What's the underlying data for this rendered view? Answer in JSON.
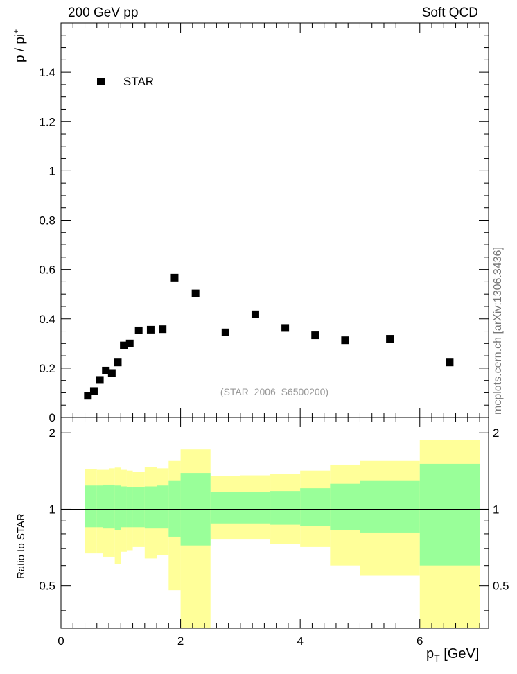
{
  "header": {
    "left": "200 GeV pp",
    "right": "Soft QCD"
  },
  "side_label": "mcplots.cern.ch [arXiv:1306.3436]",
  "analysis_id": "(STAR_2006_S6500200)",
  "chart_data": [
    {
      "type": "scatter",
      "title": "",
      "xlabel": "pT [GeV]",
      "ylabel": "p / pi+",
      "xlim": [
        0,
        7.15
      ],
      "ylim": [
        0,
        1.6
      ],
      "yticks": [
        0,
        0.2,
        0.4,
        0.6,
        0.8,
        1,
        1.2,
        1.4
      ],
      "ytick_labels": [
        "0",
        "0.2",
        "0.4",
        "0.6",
        "0.8",
        "1",
        "1.2",
        "1.4"
      ],
      "legend": [
        {
          "name": "STAR",
          "marker": "square"
        }
      ],
      "series": [
        {
          "name": "STAR",
          "x": [
            0.45,
            0.55,
            0.65,
            0.75,
            0.85,
            0.95,
            1.05,
            1.15,
            1.3,
            1.5,
            1.7,
            1.9,
            2.25,
            2.75,
            3.25,
            3.75,
            4.25,
            4.75,
            5.5,
            6.5
          ],
          "y": [
            0.088,
            0.107,
            0.152,
            0.19,
            0.18,
            0.223,
            0.292,
            0.3,
            0.353,
            0.356,
            0.358,
            0.567,
            0.503,
            0.345,
            0.418,
            0.363,
            0.333,
            0.313,
            0.319,
            0.223
          ]
        }
      ]
    },
    {
      "type": "area",
      "title": "",
      "xlabel": "pT [GeV]",
      "ylabel": "Ratio to STAR",
      "xlim": [
        0,
        7.15
      ],
      "ylim": [
        0.34,
        2.3
      ],
      "yticks": [
        0.5,
        1,
        2
      ],
      "ytick_labels": [
        "0.5",
        "1",
        "2"
      ],
      "xticks": [
        0,
        2,
        4,
        6
      ],
      "xtick_labels": [
        "0",
        "2",
        "4",
        "6"
      ],
      "reference_line": 1,
      "bins": [
        {
          "x0": 0.4,
          "x1": 0.5,
          "in_lo": 0.85,
          "in_hi": 1.24,
          "out_lo": 0.67,
          "out_hi": 1.44
        },
        {
          "x0": 0.5,
          "x1": 0.6,
          "in_lo": 0.85,
          "in_hi": 1.24,
          "out_lo": 0.67,
          "out_hi": 1.44
        },
        {
          "x0": 0.6,
          "x1": 0.7,
          "in_lo": 0.85,
          "in_hi": 1.24,
          "out_lo": 0.67,
          "out_hi": 1.43
        },
        {
          "x0": 0.7,
          "x1": 0.8,
          "in_lo": 0.84,
          "in_hi": 1.25,
          "out_lo": 0.65,
          "out_hi": 1.43
        },
        {
          "x0": 0.8,
          "x1": 0.9,
          "in_lo": 0.84,
          "in_hi": 1.25,
          "out_lo": 0.65,
          "out_hi": 1.45
        },
        {
          "x0": 0.9,
          "x1": 1.0,
          "in_lo": 0.83,
          "in_hi": 1.24,
          "out_lo": 0.61,
          "out_hi": 1.46
        },
        {
          "x0": 1.0,
          "x1": 1.1,
          "in_lo": 0.85,
          "in_hi": 1.23,
          "out_lo": 0.68,
          "out_hi": 1.43
        },
        {
          "x0": 1.1,
          "x1": 1.2,
          "in_lo": 0.85,
          "in_hi": 1.22,
          "out_lo": 0.69,
          "out_hi": 1.42
        },
        {
          "x0": 1.2,
          "x1": 1.4,
          "in_lo": 0.85,
          "in_hi": 1.22,
          "out_lo": 0.71,
          "out_hi": 1.4
        },
        {
          "x0": 1.4,
          "x1": 1.6,
          "in_lo": 0.84,
          "in_hi": 1.23,
          "out_lo": 0.64,
          "out_hi": 1.47
        },
        {
          "x0": 1.6,
          "x1": 1.8,
          "in_lo": 0.84,
          "in_hi": 1.24,
          "out_lo": 0.66,
          "out_hi": 1.45
        },
        {
          "x0": 1.8,
          "x1": 2.0,
          "in_lo": 0.78,
          "in_hi": 1.3,
          "out_lo": 0.48,
          "out_hi": 1.55
        },
        {
          "x0": 2.0,
          "x1": 2.5,
          "in_lo": 0.72,
          "in_hi": 1.39,
          "out_lo": 0.34,
          "out_hi": 1.72
        },
        {
          "x0": 2.5,
          "x1": 3.0,
          "in_lo": 0.88,
          "in_hi": 1.17,
          "out_lo": 0.76,
          "out_hi": 1.35
        },
        {
          "x0": 3.0,
          "x1": 3.5,
          "in_lo": 0.88,
          "in_hi": 1.17,
          "out_lo": 0.76,
          "out_hi": 1.36
        },
        {
          "x0": 3.5,
          "x1": 4.0,
          "in_lo": 0.87,
          "in_hi": 1.18,
          "out_lo": 0.73,
          "out_hi": 1.38
        },
        {
          "x0": 4.0,
          "x1": 4.5,
          "in_lo": 0.86,
          "in_hi": 1.21,
          "out_lo": 0.71,
          "out_hi": 1.42
        },
        {
          "x0": 4.5,
          "x1": 5.0,
          "in_lo": 0.83,
          "in_hi": 1.26,
          "out_lo": 0.6,
          "out_hi": 1.5
        },
        {
          "x0": 5.0,
          "x1": 6.0,
          "in_lo": 0.81,
          "in_hi": 1.3,
          "out_lo": 0.55,
          "out_hi": 1.55
        },
        {
          "x0": 6.0,
          "x1": 7.0,
          "in_lo": 0.6,
          "in_hi": 1.51,
          "out_lo": 0.34,
          "out_hi": 1.88
        }
      ]
    }
  ],
  "colors": {
    "inner_band": "#99ff99",
    "outer_band": "#ffff99",
    "marker": "#000000",
    "side_text": "#777777",
    "id_text": "#999999"
  }
}
